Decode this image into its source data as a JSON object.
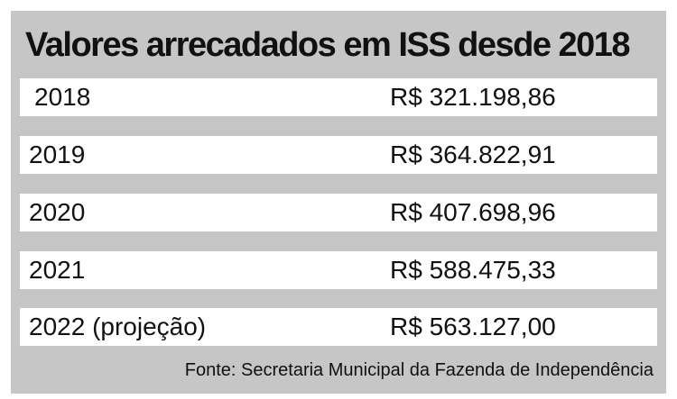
{
  "table": {
    "title": "Valores arrecadados em ISS desde 2018",
    "rows": [
      {
        "year": "2018",
        "value": "R$ 321.198,86"
      },
      {
        "year": "2019",
        "value": "R$ 364.822,91"
      },
      {
        "year": "2020",
        "value": "R$ 407.698,96"
      },
      {
        "year": "2021",
        "value": "R$ 588.475,33"
      },
      {
        "year": "2022 (projeção)",
        "value": "R$ 563.127,00"
      }
    ],
    "source": "Fonte: Secretaria Municipal da Fazenda de Independência"
  },
  "colors": {
    "panel_background": "#c6c6c6",
    "row_background": "#ffffff",
    "text": "#111111"
  }
}
